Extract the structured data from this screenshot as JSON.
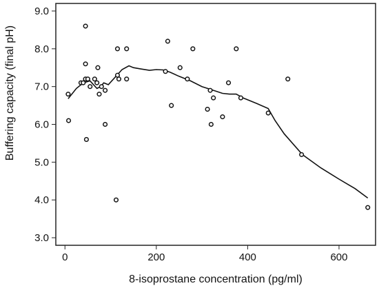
{
  "chart_data": {
    "type": "scatter",
    "xlabel": "8-isoprostane concentration (pg/ml)",
    "ylabel": "Buffering capacity (final pH)",
    "xlim": [
      -20,
      680
    ],
    "ylim": [
      2.8,
      9.2
    ],
    "xticks": [
      0,
      200,
      400,
      600
    ],
    "yticks": [
      3.0,
      4.0,
      5.0,
      6.0,
      7.0,
      8.0,
      9.0
    ],
    "ytick_labels": [
      "3.0",
      "4.0",
      "5.0",
      "6.0",
      "7.0",
      "8.0",
      "9.0"
    ],
    "grid": false,
    "legend": "none",
    "marker": "open-circle",
    "colors": {
      "points": "#111111",
      "curve": "#111111",
      "frame": "#222222"
    },
    "points": [
      {
        "x": 7,
        "y": 6.8
      },
      {
        "x": 8,
        "y": 6.1
      },
      {
        "x": 35,
        "y": 7.1
      },
      {
        "x": 40,
        "y": 7.1
      },
      {
        "x": 45,
        "y": 8.6
      },
      {
        "x": 45,
        "y": 7.6
      },
      {
        "x": 45,
        "y": 7.2
      },
      {
        "x": 47,
        "y": 5.6
      },
      {
        "x": 50,
        "y": 7.2
      },
      {
        "x": 55,
        "y": 7.0
      },
      {
        "x": 65,
        "y": 7.2
      },
      {
        "x": 70,
        "y": 7.1
      },
      {
        "x": 72,
        "y": 7.5
      },
      {
        "x": 75,
        "y": 6.8
      },
      {
        "x": 80,
        "y": 7.0
      },
      {
        "x": 88,
        "y": 6.9
      },
      {
        "x": 88,
        "y": 6.0
      },
      {
        "x": 112,
        "y": 4.0
      },
      {
        "x": 115,
        "y": 8.0
      },
      {
        "x": 115,
        "y": 7.3
      },
      {
        "x": 118,
        "y": 7.2
      },
      {
        "x": 135,
        "y": 8.0
      },
      {
        "x": 135,
        "y": 7.2
      },
      {
        "x": 220,
        "y": 7.4
      },
      {
        "x": 225,
        "y": 8.2
      },
      {
        "x": 233,
        "y": 6.5
      },
      {
        "x": 252,
        "y": 7.5
      },
      {
        "x": 268,
        "y": 7.2
      },
      {
        "x": 280,
        "y": 8.0
      },
      {
        "x": 312,
        "y": 6.4
      },
      {
        "x": 318,
        "y": 6.9
      },
      {
        "x": 320,
        "y": 6.0
      },
      {
        "x": 325,
        "y": 6.7
      },
      {
        "x": 345,
        "y": 6.2
      },
      {
        "x": 358,
        "y": 7.1
      },
      {
        "x": 375,
        "y": 8.0
      },
      {
        "x": 385,
        "y": 6.7
      },
      {
        "x": 445,
        "y": 6.3
      },
      {
        "x": 488,
        "y": 7.2
      },
      {
        "x": 518,
        "y": 5.2
      },
      {
        "x": 663,
        "y": 3.8
      }
    ],
    "curve": [
      {
        "x": 7,
        "y": 6.68
      },
      {
        "x": 25,
        "y": 6.95
      },
      {
        "x": 40,
        "y": 7.1
      },
      {
        "x": 55,
        "y": 7.15
      },
      {
        "x": 70,
        "y": 6.95
      },
      {
        "x": 78,
        "y": 7.0
      },
      {
        "x": 85,
        "y": 7.1
      },
      {
        "x": 95,
        "y": 7.05
      },
      {
        "x": 110,
        "y": 7.25
      },
      {
        "x": 125,
        "y": 7.45
      },
      {
        "x": 140,
        "y": 7.55
      },
      {
        "x": 150,
        "y": 7.5
      },
      {
        "x": 165,
        "y": 7.47
      },
      {
        "x": 185,
        "y": 7.43
      },
      {
        "x": 200,
        "y": 7.45
      },
      {
        "x": 215,
        "y": 7.44
      },
      {
        "x": 230,
        "y": 7.38
      },
      {
        "x": 250,
        "y": 7.27
      },
      {
        "x": 275,
        "y": 7.15
      },
      {
        "x": 300,
        "y": 7.0
      },
      {
        "x": 325,
        "y": 6.9
      },
      {
        "x": 345,
        "y": 6.82
      },
      {
        "x": 360,
        "y": 6.8
      },
      {
        "x": 375,
        "y": 6.8
      },
      {
        "x": 390,
        "y": 6.7
      },
      {
        "x": 420,
        "y": 6.55
      },
      {
        "x": 445,
        "y": 6.42
      },
      {
        "x": 460,
        "y": 6.1
      },
      {
        "x": 480,
        "y": 5.75
      },
      {
        "x": 520,
        "y": 5.2
      },
      {
        "x": 560,
        "y": 4.85
      },
      {
        "x": 600,
        "y": 4.55
      },
      {
        "x": 635,
        "y": 4.3
      },
      {
        "x": 663,
        "y": 4.05
      }
    ]
  }
}
